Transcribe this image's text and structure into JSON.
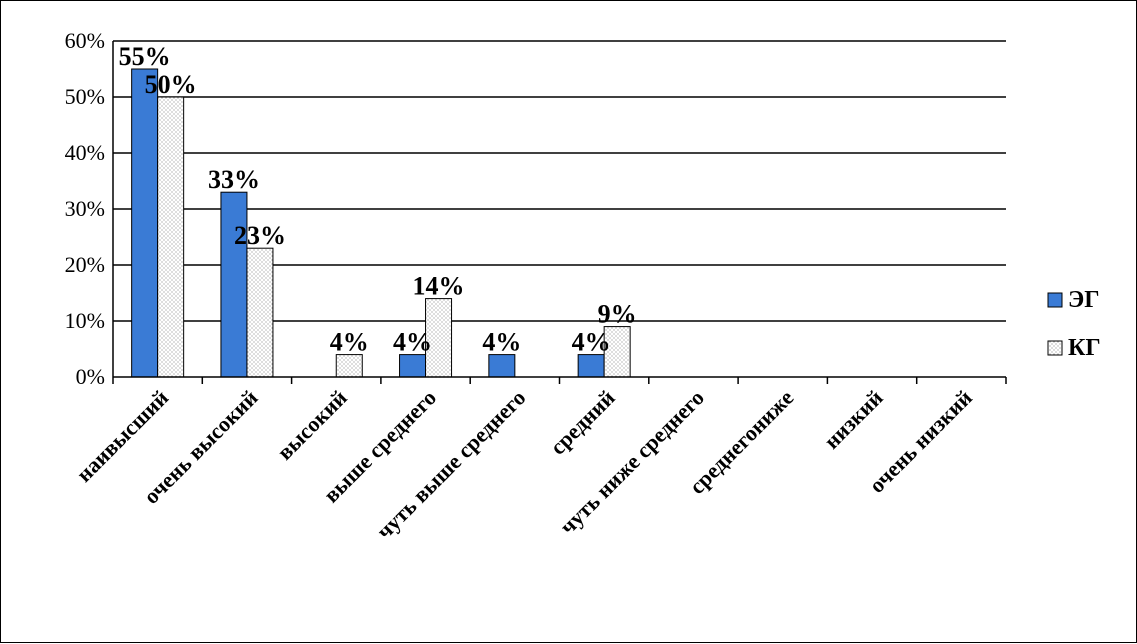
{
  "chart_data": {
    "type": "bar",
    "categories": [
      "наивысший",
      "очень высокий",
      "высокий",
      "выше среднего",
      "чуть выше среднего",
      "средний",
      "чуть ниже среднего",
      "среднегониже",
      "низкий",
      "очень низкий"
    ],
    "series": [
      {
        "name": "ЭГ",
        "values": [
          55,
          33,
          0,
          4,
          4,
          4,
          0,
          0,
          0,
          0
        ],
        "labels": [
          "55%",
          "33%",
          "",
          "4%",
          "4%",
          "4%",
          "",
          "",
          "",
          ""
        ],
        "color": "#3a7bd5",
        "pattern": "solid"
      },
      {
        "name": "КГ",
        "values": [
          50,
          23,
          4,
          14,
          0,
          9,
          0,
          0,
          0,
          0
        ],
        "labels": [
          "50%",
          "23%",
          "4%",
          "14%",
          "",
          "9%",
          "",
          "",
          "",
          ""
        ],
        "color": "#ffffff",
        "pattern": "dotted"
      }
    ],
    "yticks": [
      "0%",
      "10%",
      "20%",
      "30%",
      "40%",
      "50%",
      "60%"
    ],
    "ylim": [
      0,
      60
    ],
    "grid": true,
    "legend_position": "right",
    "title": "",
    "xlabel": "",
    "ylabel": ""
  }
}
